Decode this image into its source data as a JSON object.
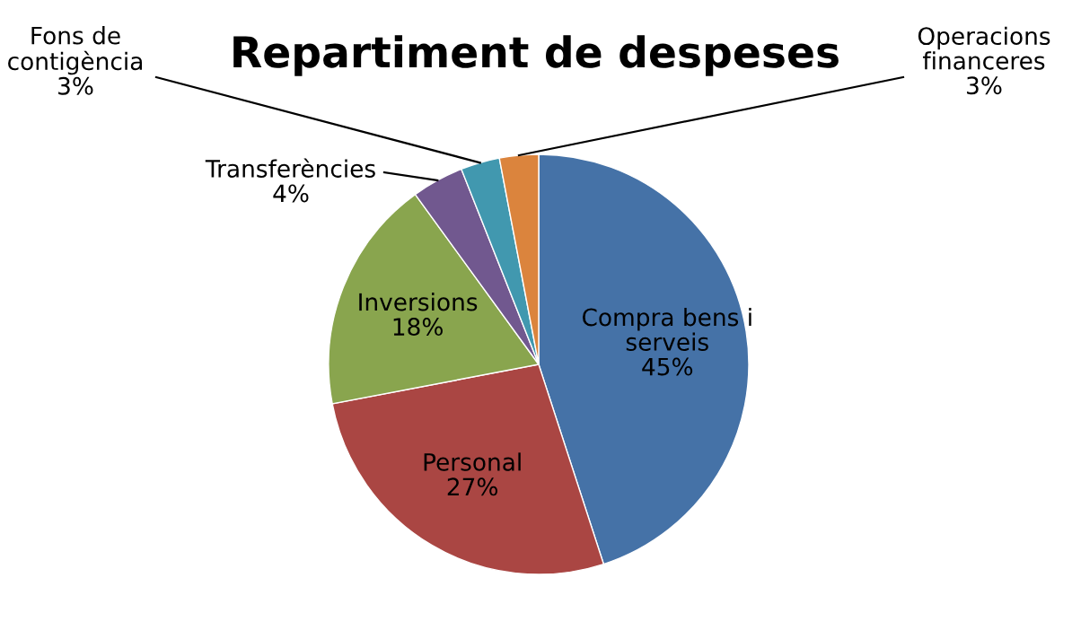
{
  "chart_data": {
    "type": "pie",
    "title": "Repartiment de despeses",
    "categories": [
      "Compra bens i\nserveis",
      "Personal",
      "Inversions",
      "Transferències",
      "Fons de\ncontigència",
      "Operacions\nfinanceres"
    ],
    "values": [
      45,
      27,
      18,
      4,
      3,
      3
    ],
    "colors": [
      "#4572a7",
      "#aa4643",
      "#89a54e",
      "#71588f",
      "#4198af",
      "#db843d"
    ],
    "value_labels": [
      "45%",
      "27%",
      "18%",
      "4%",
      "3%",
      "3%"
    ],
    "legend": false
  }
}
